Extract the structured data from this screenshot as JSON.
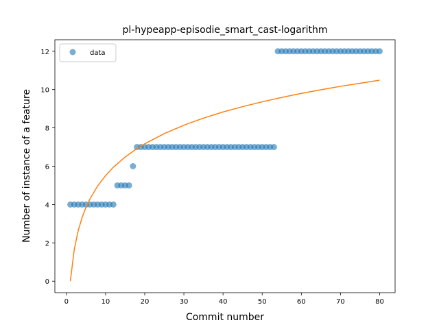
{
  "chart_data": {
    "type": "scatter",
    "title": "pl-hypeapp-episodie_smart_cast-logarithm",
    "xlabel": "Commit number",
    "ylabel": "Number of instance of a feature",
    "xlim": [
      -2.95,
      83.95
    ],
    "ylim": [
      -0.6,
      12.6
    ],
    "xticks": [
      0,
      10,
      20,
      30,
      40,
      50,
      60,
      70,
      80
    ],
    "yticks": [
      0,
      2,
      4,
      6,
      8,
      10,
      12
    ],
    "grid": false,
    "legend_position": "top-left",
    "series": [
      {
        "name": "data",
        "kind": "scatter",
        "color": "#1f77b4",
        "x": [
          1,
          2,
          3,
          4,
          5,
          6,
          7,
          8,
          9,
          10,
          11,
          12,
          13,
          14,
          15,
          16,
          17,
          18,
          19,
          20,
          21,
          22,
          23,
          24,
          25,
          26,
          27,
          28,
          29,
          30,
          31,
          32,
          33,
          34,
          35,
          36,
          37,
          38,
          39,
          40,
          41,
          42,
          43,
          44,
          45,
          46,
          47,
          48,
          49,
          50,
          51,
          52,
          53,
          54,
          55,
          56,
          57,
          58,
          59,
          60,
          61,
          62,
          63,
          64,
          65,
          66,
          67,
          68,
          69,
          70,
          71,
          72,
          73,
          74,
          75,
          76,
          77,
          78,
          79,
          80
        ],
        "y": [
          4,
          4,
          4,
          4,
          4,
          4,
          4,
          4,
          4,
          4,
          4,
          4,
          5,
          5,
          5,
          5,
          6,
          7,
          7,
          7,
          7,
          7,
          7,
          7,
          7,
          7,
          7,
          7,
          7,
          7,
          7,
          7,
          7,
          7,
          7,
          7,
          7,
          7,
          7,
          7,
          7,
          7,
          7,
          7,
          7,
          7,
          7,
          7,
          7,
          7,
          7,
          7,
          7,
          12,
          12,
          12,
          12,
          12,
          12,
          12,
          12,
          12,
          12,
          12,
          12,
          12,
          12,
          12,
          12,
          12,
          12,
          12,
          12,
          12,
          12,
          12,
          12,
          12,
          12,
          12
        ]
      },
      {
        "kind": "line",
        "color": "#ff7f0e",
        "x": [
          1,
          2,
          3,
          4,
          5,
          6,
          8,
          10,
          12,
          15,
          18,
          20,
          25,
          30,
          35,
          40,
          45,
          50,
          55,
          60,
          65,
          70,
          75,
          80
        ],
        "y": [
          0.0,
          1.66,
          2.63,
          3.32,
          3.86,
          4.29,
          4.98,
          5.51,
          5.95,
          6.48,
          6.92,
          7.17,
          7.7,
          8.14,
          8.51,
          8.83,
          9.11,
          9.36,
          9.59,
          9.8,
          9.99,
          10.17,
          10.33,
          10.49
        ]
      }
    ]
  }
}
